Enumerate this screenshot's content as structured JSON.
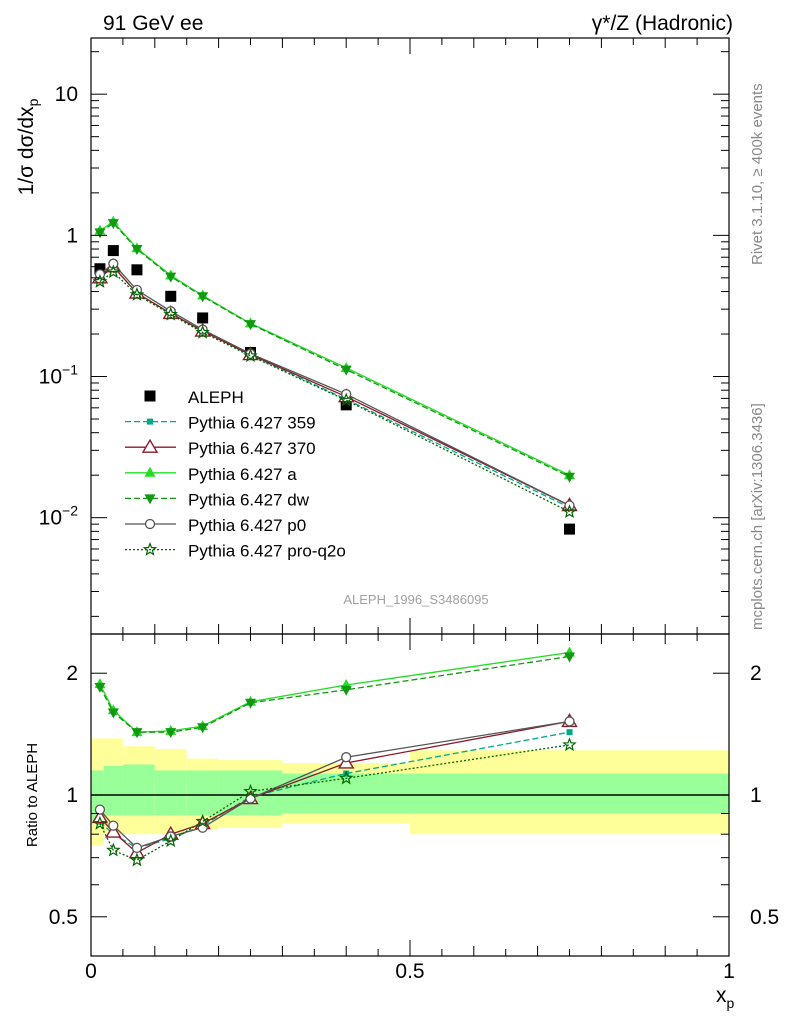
{
  "header": {
    "left_title": "91 GeV ee",
    "right_title": "γ*/Z (Hadronic)"
  },
  "side": {
    "rivet": "Rivet 3.1.10, ≥ 400k events",
    "mcplots": "mcplots.cern.ch [arXiv:1306.3436]"
  },
  "analysis_label": "ALEPH_1996_S3486095",
  "chart_data": [
    {
      "type": "line",
      "panel": "main",
      "title": "91 GeV ee",
      "ylabel": "1/σ dσ/dx",
      "ylabel_sub": "p",
      "yscale": "log",
      "xlim": [
        0,
        1
      ],
      "ylim": [
        0.0015,
        25
      ],
      "y_ticks": [
        {
          "value": 10,
          "base": "10",
          "exp": ""
        },
        {
          "value": 1,
          "base": "1",
          "exp": ""
        },
        {
          "value": 0.1,
          "base": "10",
          "exp": "−1"
        },
        {
          "value": 0.01,
          "base": "10",
          "exp": "−2"
        }
      ],
      "x": [
        0.014,
        0.035,
        0.072,
        0.125,
        0.175,
        0.25,
        0.4,
        0.75
      ],
      "series": [
        {
          "name": "ALEPH",
          "color": "#000000",
          "dash": "",
          "marker": "square",
          "values": [
            0.58,
            0.78,
            0.57,
            0.37,
            0.26,
            0.148,
            0.063,
            0.0083
          ]
        },
        {
          "name": "Pythia 6.427 359",
          "color": "#00aa88",
          "dash": "6,3",
          "marker": "smallsquare",
          "values": [
            0.5,
            0.6,
            0.39,
            0.28,
            0.21,
            0.142,
            0.069,
            0.0118
          ]
        },
        {
          "name": "Pythia 6.427 370",
          "color": "#8b1a2b",
          "dash": "",
          "marker": "triangle-open",
          "values": [
            0.5,
            0.6,
            0.39,
            0.28,
            0.21,
            0.143,
            0.072,
            0.0122
          ]
        },
        {
          "name": "Pythia 6.427 a",
          "color": "#22dd22",
          "dash": "",
          "marker": "triangle-up",
          "values": [
            1.08,
            1.25,
            0.81,
            0.52,
            0.375,
            0.238,
            0.115,
            0.02
          ]
        },
        {
          "name": "Pythia 6.427 dw",
          "color": "#119911",
          "dash": "6,3",
          "marker": "triangle-down",
          "values": [
            1.05,
            1.22,
            0.8,
            0.51,
            0.37,
            0.235,
            0.112,
            0.0195
          ]
        },
        {
          "name": "Pythia 6.427 p0",
          "color": "#555555",
          "dash": "",
          "marker": "circle-open",
          "values": [
            0.53,
            0.63,
            0.41,
            0.29,
            0.215,
            0.145,
            0.075,
            0.0122
          ]
        },
        {
          "name": "Pythia 6.427 pro-q2o",
          "color": "#006600",
          "dash": "2,2",
          "marker": "star",
          "values": [
            0.47,
            0.55,
            0.38,
            0.275,
            0.205,
            0.14,
            0.068,
            0.011
          ]
        }
      ]
    },
    {
      "type": "line",
      "panel": "ratio",
      "ylabel": "Ratio to ALEPH",
      "xlabel": "x",
      "xlabel_sub": "p",
      "yscale": "log",
      "xlim": [
        0,
        1
      ],
      "ylim": [
        0.4,
        2.5
      ],
      "y_ticks": [
        {
          "value": 2,
          "label": "2"
        },
        {
          "value": 1,
          "label": "1"
        },
        {
          "value": 0.5,
          "label": "0.5"
        }
      ],
      "x_ticks": [
        {
          "value": 0,
          "label": "0"
        },
        {
          "value": 0.5,
          "label": "0.5"
        },
        {
          "value": 1,
          "label": "1"
        }
      ],
      "x": [
        0.014,
        0.035,
        0.072,
        0.125,
        0.175,
        0.25,
        0.4,
        0.75
      ],
      "bands": {
        "bins": [
          {
            "x0": 0,
            "x1": 0.02,
            "stat_lo": 0.86,
            "stat_hi": 1.15,
            "tot_lo": 0.75,
            "tot_hi": 1.38
          },
          {
            "x0": 0.02,
            "x1": 0.05,
            "stat_lo": 0.89,
            "stat_hi": 1.18,
            "tot_lo": 0.8,
            "tot_hi": 1.38
          },
          {
            "x0": 0.05,
            "x1": 0.1,
            "stat_lo": 0.89,
            "stat_hi": 1.19,
            "tot_lo": 0.8,
            "tot_hi": 1.32
          },
          {
            "x0": 0.1,
            "x1": 0.15,
            "stat_lo": 0.89,
            "stat_hi": 1.15,
            "tot_lo": 0.8,
            "tot_hi": 1.3
          },
          {
            "x0": 0.15,
            "x1": 0.2,
            "stat_lo": 0.89,
            "stat_hi": 1.15,
            "tot_lo": 0.82,
            "tot_hi": 1.23
          },
          {
            "x0": 0.2,
            "x1": 0.3,
            "stat_lo": 0.89,
            "stat_hi": 1.15,
            "tot_lo": 0.83,
            "tot_hi": 1.22
          },
          {
            "x0": 0.3,
            "x1": 0.5,
            "stat_lo": 0.9,
            "stat_hi": 1.13,
            "tot_lo": 0.85,
            "tot_hi": 1.2
          },
          {
            "x0": 0.5,
            "x1": 1.0,
            "stat_lo": 0.9,
            "stat_hi": 1.13,
            "tot_lo": 0.8,
            "tot_hi": 1.29
          }
        ],
        "stat_color": "#99ff99",
        "total_color": "#ffff99"
      },
      "series": [
        {
          "name": "Pythia 6.427 359",
          "color": "#00aa88",
          "dash": "6,3",
          "marker": "smallsquare",
          "values": [
            0.86,
            0.8,
            0.74,
            0.78,
            0.84,
            0.99,
            1.13,
            1.43
          ]
        },
        {
          "name": "Pythia 6.427 370",
          "color": "#8b1a2b",
          "dash": "",
          "marker": "triangle-open",
          "values": [
            0.88,
            0.81,
            0.72,
            0.8,
            0.85,
            0.98,
            1.2,
            1.52
          ]
        },
        {
          "name": "Pythia 6.427 a",
          "color": "#22dd22",
          "dash": "",
          "marker": "triangle-up",
          "values": [
            1.88,
            1.62,
            1.43,
            1.44,
            1.48,
            1.7,
            1.87,
            2.25
          ]
        },
        {
          "name": "Pythia 6.427 dw",
          "color": "#119911",
          "dash": "6,3",
          "marker": "triangle-down",
          "values": [
            1.85,
            1.6,
            1.43,
            1.43,
            1.47,
            1.69,
            1.82,
            2.2
          ]
        },
        {
          "name": "Pythia 6.427 p0",
          "color": "#555555",
          "dash": "",
          "marker": "circle-open",
          "values": [
            0.92,
            0.84,
            0.74,
            0.79,
            0.83,
            0.98,
            1.24,
            1.52
          ]
        },
        {
          "name": "Pythia 6.427 pro-q2o",
          "color": "#006600",
          "dash": "2,2",
          "marker": "star",
          "values": [
            0.85,
            0.73,
            0.69,
            0.77,
            0.86,
            1.02,
            1.1,
            1.33
          ]
        }
      ]
    }
  ]
}
